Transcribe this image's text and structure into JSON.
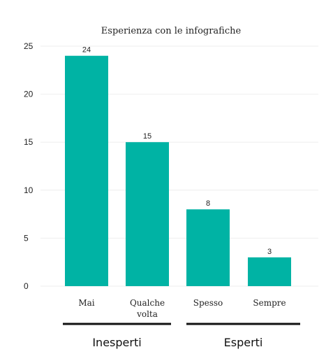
{
  "chart_data": {
    "type": "bar",
    "title": "Esperienza con le infografiche",
    "categories": [
      "Mai",
      "Qualche volta",
      "Spesso",
      "Sempre"
    ],
    "category_lines": [
      [
        "Mai"
      ],
      [
        "Qualche",
        "volta"
      ],
      [
        "Spesso"
      ],
      [
        "Sempre"
      ]
    ],
    "values": [
      24,
      15,
      8,
      3
    ],
    "data_labels": [
      "24",
      "15",
      "8",
      "3"
    ],
    "ylim": [
      0,
      25
    ],
    "yticks": [
      0,
      5,
      10,
      15,
      20,
      25
    ],
    "grid": true,
    "bar_color": "#00b3a4",
    "groups": [
      {
        "label": "Inesperti",
        "categories": [
          "Mai",
          "Qualche volta"
        ]
      },
      {
        "label": "Esperti",
        "categories": [
          "Spesso",
          "Sempre"
        ]
      }
    ]
  }
}
